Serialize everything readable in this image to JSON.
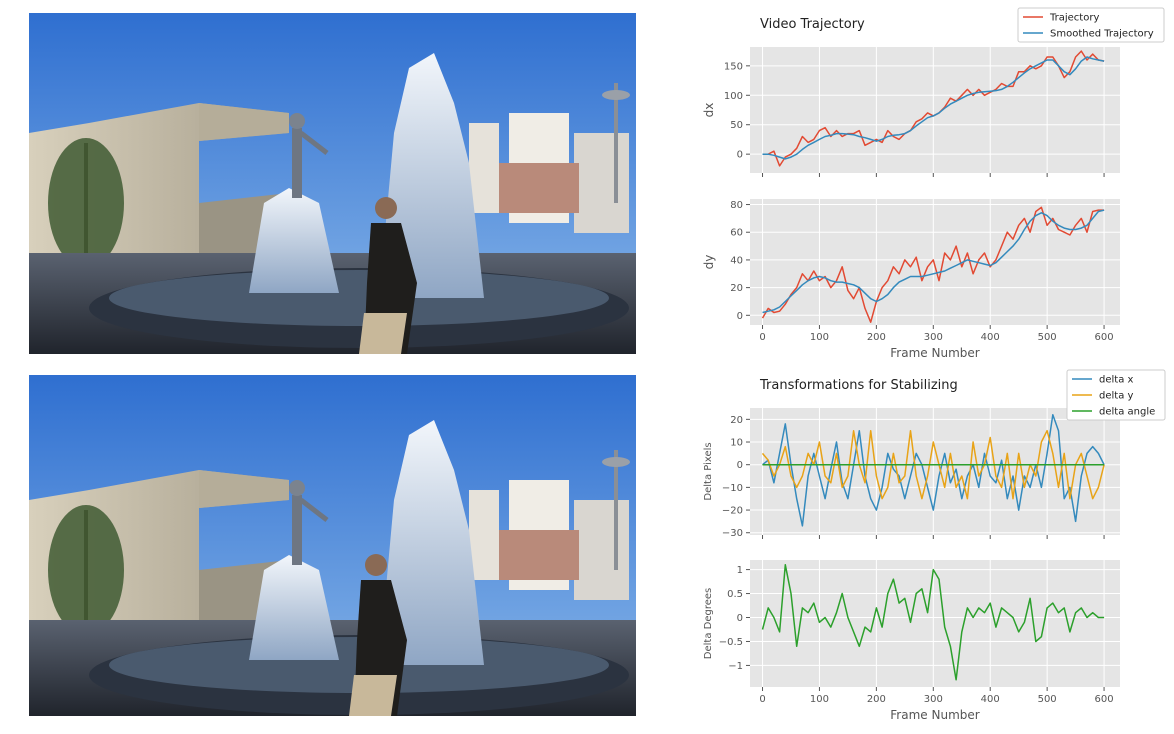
{
  "chart_data": [
    {
      "type": "line",
      "title": "Video Trajectory",
      "xlabel": "",
      "ylabel": "dx",
      "xlim": [
        -22,
        628
      ],
      "ylim": [
        -32,
        182
      ],
      "xticks": [
        0,
        100,
        200,
        300,
        400,
        500,
        600
      ],
      "yticks": [
        0,
        50,
        100,
        150
      ],
      "show_xticklabels": false,
      "grid": true,
      "legend_position": "top-right",
      "series": [
        {
          "name": "Trajectory",
          "color": "#e24a33",
          "x": [
            0,
            10,
            20,
            30,
            40,
            50,
            60,
            70,
            80,
            90,
            100,
            110,
            120,
            130,
            140,
            150,
            160,
            170,
            180,
            190,
            200,
            210,
            220,
            230,
            240,
            250,
            260,
            270,
            280,
            290,
            300,
            310,
            320,
            330,
            340,
            350,
            360,
            370,
            380,
            390,
            400,
            410,
            420,
            430,
            440,
            450,
            460,
            470,
            480,
            490,
            500,
            510,
            520,
            530,
            540,
            550,
            560,
            570,
            580,
            590,
            600
          ],
          "y": [
            0,
            0,
            5,
            -20,
            -5,
            0,
            10,
            30,
            20,
            25,
            40,
            45,
            30,
            40,
            30,
            35,
            35,
            40,
            15,
            20,
            25,
            20,
            40,
            30,
            25,
            35,
            40,
            55,
            60,
            70,
            65,
            70,
            80,
            95,
            90,
            100,
            110,
            100,
            110,
            100,
            105,
            110,
            120,
            115,
            115,
            140,
            140,
            150,
            145,
            150,
            165,
            165,
            150,
            130,
            140,
            165,
            175,
            160,
            170,
            160,
            158
          ]
        },
        {
          "name": "Smoothed Trajectory",
          "color": "#348abd",
          "x": [
            0,
            10,
            20,
            30,
            40,
            50,
            60,
            70,
            80,
            90,
            100,
            110,
            120,
            130,
            140,
            150,
            160,
            170,
            180,
            190,
            200,
            210,
            220,
            230,
            240,
            250,
            260,
            270,
            280,
            290,
            300,
            310,
            320,
            330,
            340,
            350,
            360,
            370,
            380,
            390,
            400,
            410,
            420,
            430,
            440,
            450,
            460,
            470,
            480,
            490,
            500,
            510,
            520,
            530,
            540,
            550,
            560,
            570,
            580,
            590,
            600
          ],
          "y": [
            0,
            0,
            -2,
            -5,
            -8,
            -5,
            0,
            8,
            15,
            20,
            25,
            30,
            32,
            35,
            35,
            34,
            33,
            30,
            28,
            25,
            22,
            25,
            30,
            32,
            33,
            35,
            40,
            48,
            55,
            62,
            65,
            70,
            78,
            85,
            90,
            95,
            100,
            103,
            105,
            106,
            107,
            108,
            110,
            115,
            122,
            130,
            138,
            145,
            150,
            155,
            160,
            160,
            150,
            140,
            135,
            145,
            158,
            165,
            162,
            160,
            158
          ]
        }
      ]
    },
    {
      "type": "line",
      "title": "",
      "xlabel": "Frame Number",
      "ylabel": "dy",
      "xlim": [
        -22,
        628
      ],
      "ylim": [
        -7,
        84
      ],
      "xticks": [
        0,
        100,
        200,
        300,
        400,
        500,
        600
      ],
      "yticks": [
        0,
        20,
        40,
        60,
        80
      ],
      "show_xticklabels": true,
      "grid": true,
      "series": [
        {
          "name": "Trajectory",
          "color": "#e24a33",
          "x": [
            0,
            10,
            20,
            30,
            40,
            50,
            60,
            70,
            80,
            90,
            100,
            110,
            120,
            130,
            140,
            150,
            160,
            170,
            180,
            190,
            200,
            210,
            220,
            230,
            240,
            250,
            260,
            270,
            280,
            290,
            300,
            310,
            320,
            330,
            340,
            350,
            360,
            370,
            380,
            390,
            400,
            410,
            420,
            430,
            440,
            450,
            460,
            470,
            480,
            490,
            500,
            510,
            520,
            530,
            540,
            550,
            560,
            570,
            580,
            590,
            600
          ],
          "y": [
            -2,
            5,
            2,
            3,
            8,
            15,
            20,
            30,
            25,
            32,
            25,
            28,
            20,
            25,
            35,
            18,
            12,
            20,
            5,
            -5,
            10,
            20,
            25,
            35,
            30,
            40,
            35,
            42,
            25,
            35,
            40,
            25,
            45,
            40,
            50,
            35,
            45,
            30,
            40,
            45,
            35,
            40,
            50,
            60,
            55,
            65,
            70,
            60,
            75,
            78,
            65,
            70,
            62,
            60,
            58,
            65,
            70,
            60,
            75,
            76,
            76
          ]
        },
        {
          "name": "Smoothed Trajectory",
          "color": "#348abd",
          "x": [
            0,
            10,
            20,
            30,
            40,
            50,
            60,
            70,
            80,
            90,
            100,
            110,
            120,
            130,
            140,
            150,
            160,
            170,
            180,
            190,
            200,
            210,
            220,
            230,
            240,
            250,
            260,
            270,
            280,
            290,
            300,
            310,
            320,
            330,
            340,
            350,
            360,
            370,
            380,
            390,
            400,
            410,
            420,
            430,
            440,
            450,
            460,
            470,
            480,
            490,
            500,
            510,
            520,
            530,
            540,
            550,
            560,
            570,
            580,
            590,
            600
          ],
          "y": [
            2,
            3,
            4,
            6,
            10,
            14,
            18,
            22,
            25,
            27,
            28,
            27,
            25,
            24,
            24,
            23,
            22,
            20,
            16,
            12,
            10,
            12,
            15,
            20,
            24,
            26,
            28,
            28,
            28,
            29,
            30,
            31,
            32,
            34,
            36,
            38,
            40,
            39,
            38,
            37,
            36,
            38,
            42,
            46,
            50,
            55,
            62,
            68,
            72,
            74,
            72,
            68,
            65,
            63,
            62,
            62,
            63,
            65,
            70,
            75,
            76
          ]
        }
      ]
    },
    {
      "type": "line",
      "title": "Transformations for Stabilizing",
      "xlabel": "",
      "ylabel": "Delta Pixels",
      "xlim": [
        -22,
        628
      ],
      "ylim": [
        -31,
        25
      ],
      "xticks": [
        0,
        100,
        200,
        300,
        400,
        500,
        600
      ],
      "yticks": [
        -30,
        -20,
        -10,
        0,
        10,
        20
      ],
      "show_xticklabels": false,
      "grid": true,
      "legend_position": "top-right",
      "series": [
        {
          "name": "delta x",
          "color": "#348abd",
          "x": [
            0,
            10,
            20,
            30,
            40,
            50,
            60,
            70,
            80,
            90,
            100,
            110,
            120,
            130,
            140,
            150,
            160,
            170,
            180,
            190,
            200,
            210,
            220,
            230,
            240,
            250,
            260,
            270,
            280,
            290,
            300,
            310,
            320,
            330,
            340,
            350,
            360,
            370,
            380,
            390,
            400,
            410,
            420,
            430,
            440,
            450,
            460,
            470,
            480,
            490,
            500,
            510,
            520,
            530,
            540,
            550,
            560,
            570,
            580,
            590,
            600
          ],
          "y": [
            0,
            2,
            -8,
            5,
            18,
            0,
            -15,
            -27,
            -5,
            5,
            -5,
            -15,
            -2,
            10,
            -8,
            -15,
            0,
            15,
            -5,
            -15,
            -20,
            -10,
            5,
            -2,
            -5,
            -15,
            -5,
            5,
            0,
            -10,
            -20,
            -5,
            5,
            -8,
            -2,
            -15,
            -5,
            0,
            -10,
            5,
            -5,
            -8,
            2,
            -15,
            -5,
            -20,
            -5,
            -10,
            0,
            -10,
            5,
            22,
            15,
            -15,
            -10,
            -25,
            -5,
            5,
            8,
            5,
            0
          ]
        },
        {
          "name": "delta y",
          "color": "#e8a317",
          "x": [
            0,
            10,
            20,
            30,
            40,
            50,
            60,
            70,
            80,
            90,
            100,
            110,
            120,
            130,
            140,
            150,
            160,
            170,
            180,
            190,
            200,
            210,
            220,
            230,
            240,
            250,
            260,
            270,
            280,
            290,
            300,
            310,
            320,
            330,
            340,
            350,
            360,
            370,
            380,
            390,
            400,
            410,
            420,
            430,
            440,
            450,
            460,
            470,
            480,
            490,
            500,
            510,
            520,
            530,
            540,
            550,
            560,
            570,
            580,
            590,
            600
          ],
          "y": [
            5,
            2,
            -5,
            0,
            8,
            -5,
            -10,
            -5,
            5,
            0,
            10,
            -5,
            -8,
            5,
            -10,
            -5,
            15,
            0,
            -8,
            15,
            -5,
            -15,
            -10,
            5,
            -8,
            -5,
            15,
            -5,
            -15,
            -5,
            10,
            0,
            -10,
            5,
            -10,
            -5,
            -15,
            10,
            -5,
            0,
            12,
            -5,
            -10,
            5,
            -15,
            5,
            -10,
            0,
            -5,
            10,
            15,
            5,
            -10,
            5,
            -15,
            0,
            5,
            -5,
            -15,
            -10,
            0
          ]
        },
        {
          "name": "delta angle",
          "color": "#2ca02c",
          "x": [
            0,
            600
          ],
          "y": [
            0,
            0
          ]
        }
      ]
    },
    {
      "type": "line",
      "title": "",
      "xlabel": "Frame Number",
      "ylabel": "Delta Degrees",
      "xlim": [
        -22,
        628
      ],
      "ylim": [
        -1.45,
        1.2
      ],
      "xticks": [
        0,
        100,
        200,
        300,
        400,
        500,
        600
      ],
      "yticks": [
        -1.0,
        -0.5,
        0.0,
        0.5,
        1.0
      ],
      "show_xticklabels": true,
      "grid": true,
      "series": [
        {
          "name": "delta angle",
          "color": "#2ca02c",
          "x": [
            0,
            10,
            20,
            30,
            40,
            50,
            60,
            70,
            80,
            90,
            100,
            110,
            120,
            130,
            140,
            150,
            160,
            170,
            180,
            190,
            200,
            210,
            220,
            230,
            240,
            250,
            260,
            270,
            280,
            290,
            300,
            310,
            320,
            330,
            340,
            350,
            360,
            370,
            380,
            390,
            400,
            410,
            420,
            430,
            440,
            450,
            460,
            470,
            480,
            490,
            500,
            510,
            520,
            530,
            540,
            550,
            560,
            570,
            580,
            590,
            600
          ],
          "y": [
            -0.25,
            0.2,
            0,
            -0.3,
            1.1,
            0.5,
            -0.6,
            0.2,
            0.1,
            0.3,
            -0.1,
            0,
            -0.2,
            0.1,
            0.5,
            0,
            -0.3,
            -0.6,
            -0.2,
            -0.3,
            0.2,
            -0.2,
            0.5,
            0.8,
            0.3,
            0.4,
            -0.1,
            0.5,
            0.6,
            0.1,
            1.0,
            0.8,
            -0.2,
            -0.6,
            -1.3,
            -0.3,
            0.2,
            0,
            0.2,
            0.1,
            0.3,
            -0.2,
            0.2,
            0.1,
            0,
            -0.3,
            -0.1,
            0.4,
            -0.5,
            -0.4,
            0.2,
            0.3,
            0.1,
            0.2,
            -0.3,
            0.1,
            0.2,
            0,
            0.1,
            0,
            0
          ]
        }
      ]
    }
  ]
}
